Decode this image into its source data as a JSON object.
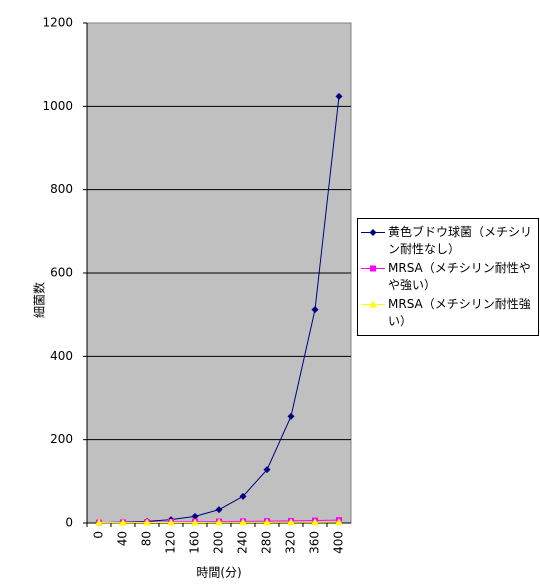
{
  "chart_data": {
    "type": "line",
    "x_label": "時間(分)",
    "y_label": "細菌数",
    "categories": [
      "0",
      "40",
      "80",
      "120",
      "160",
      "200",
      "240",
      "280",
      "320",
      "360",
      "400"
    ],
    "series": [
      {
        "name": "黄色ブドウ球菌（メチシリン耐性なし）",
        "color": "#000080",
        "marker": "diamond",
        "values": [
          1,
          2,
          4,
          8,
          16,
          32,
          64,
          128,
          256,
          512,
          1024
        ]
      },
      {
        "name": "MRSA（メチシリン耐性やや強い）",
        "color": "#ff00ff",
        "marker": "square",
        "values": [
          1,
          1.4,
          2,
          2.5,
          3,
          3.5,
          4,
          4.5,
          5,
          6,
          7
        ]
      },
      {
        "name": "MRSA（メチシリン耐性強い）",
        "color": "#ffff00",
        "marker": "triangle",
        "values": [
          1,
          1,
          1.1,
          1.2,
          1.3,
          1.4,
          1.5,
          1.6,
          1.7,
          1.8,
          2
        ]
      }
    ],
    "ylim": [
      0,
      1200
    ],
    "yticks": [
      0,
      200,
      400,
      600,
      800,
      1000,
      1200
    ],
    "grid": true,
    "legend": "right"
  }
}
